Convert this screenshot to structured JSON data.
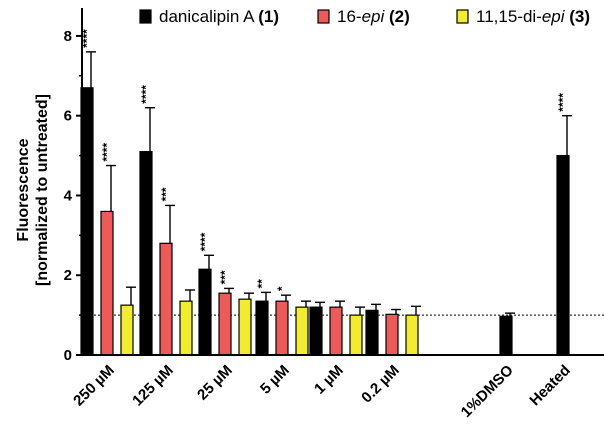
{
  "chart_data": {
    "type": "bar",
    "ylabel_line1": "Fluorescence",
    "ylabel_line2": "[normalized to untreated]",
    "ylim": [
      0,
      8.6
    ],
    "yticks": [
      "0",
      "2",
      "4",
      "6",
      "8"
    ],
    "reference_line": 1,
    "legend": [
      {
        "prefix": "danicalipin A ",
        "italic": "",
        "suffix": "",
        "bold": "(1)",
        "color": "#000000"
      },
      {
        "prefix": "16-",
        "italic": "epi",
        "suffix": " ",
        "bold": "(2)",
        "color": "#ec5a5a"
      },
      {
        "prefix": "11,15-di-",
        "italic": "epi",
        "suffix": " ",
        "bold": "(3)",
        "color": "#f1ec30"
      }
    ],
    "groups": [
      {
        "label": "250 µM",
        "bars": [
          {
            "series": 0,
            "value": 6.7,
            "error": 0.9,
            "sig": "****"
          },
          {
            "series": 1,
            "value": 3.6,
            "error": 1.15,
            "sig": "****"
          },
          {
            "series": 2,
            "value": 1.25,
            "error": 0.45,
            "sig": ""
          }
        ]
      },
      {
        "label": "125 µM",
        "bars": [
          {
            "series": 0,
            "value": 5.1,
            "error": 1.1,
            "sig": "****"
          },
          {
            "series": 1,
            "value": 2.8,
            "error": 0.95,
            "sig": "***"
          },
          {
            "series": 2,
            "value": 1.35,
            "error": 0.28,
            "sig": ""
          }
        ]
      },
      {
        "label": "25 µM",
        "bars": [
          {
            "series": 0,
            "value": 2.15,
            "error": 0.35,
            "sig": "****"
          },
          {
            "series": 1,
            "value": 1.55,
            "error": 0.12,
            "sig": "***"
          },
          {
            "series": 2,
            "value": 1.4,
            "error": 0.15,
            "sig": ""
          }
        ]
      },
      {
        "label": "5 µM",
        "bars": [
          {
            "series": 0,
            "value": 1.35,
            "error": 0.22,
            "sig": "**"
          },
          {
            "series": 1,
            "value": 1.35,
            "error": 0.15,
            "sig": "*"
          },
          {
            "series": 2,
            "value": 1.2,
            "error": 0.15,
            "sig": ""
          }
        ]
      },
      {
        "label": "1 µM",
        "bars": [
          {
            "series": 0,
            "value": 1.2,
            "error": 0.12,
            "sig": ""
          },
          {
            "series": 1,
            "value": 1.2,
            "error": 0.15,
            "sig": ""
          },
          {
            "series": 2,
            "value": 1.0,
            "error": 0.2,
            "sig": ""
          }
        ]
      },
      {
        "label": "0.2 µM",
        "bars": [
          {
            "series": 0,
            "value": 1.12,
            "error": 0.15,
            "sig": ""
          },
          {
            "series": 1,
            "value": 1.02,
            "error": 0.12,
            "sig": ""
          },
          {
            "series": 2,
            "value": 1.0,
            "error": 0.22,
            "sig": ""
          }
        ]
      },
      {
        "label": "1%DMSO",
        "bars": [
          {
            "series": 0,
            "value": 0.97,
            "error": 0.08,
            "sig": ""
          }
        ]
      },
      {
        "label": "Heated",
        "bars": [
          {
            "series": 0,
            "value": 5.0,
            "error": 1.0,
            "sig": "****"
          }
        ]
      }
    ]
  }
}
